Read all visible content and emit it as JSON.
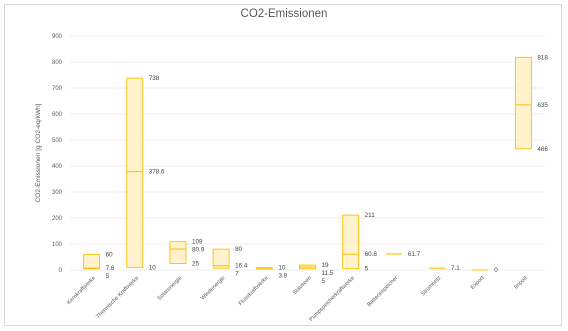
{
  "chart_data": {
    "type": "bar",
    "subtype": "floating-range-with-median",
    "title": "CO2-Emissionen",
    "ylabel": "CO2-Emissionen [g CO2-eq/kWh]",
    "xlabel": "",
    "ylim": [
      0,
      900
    ],
    "yticks": [
      0,
      100,
      200,
      300,
      400,
      500,
      600,
      700,
      800,
      900
    ],
    "grid": true,
    "legend": "none",
    "colors": {
      "fill": "#FFF2CC",
      "stroke": "#FFC000",
      "grid": "#e6e6e6",
      "text": "#595959"
    },
    "categories": [
      "Kernkraftwerke",
      "Thermische Kraftwerke",
      "Solarenergie",
      "Windenergie",
      "Flusskraftwerke",
      "Stauseen",
      "Pumpspeicherkraftwerke",
      "Batteriespeicher",
      "Stromnetz",
      "Export",
      "Import"
    ],
    "series": [
      {
        "values": [
          {
            "min": 5,
            "median": 7.6,
            "max": 60,
            "labels": [
              "60",
              "7.6",
              "5"
            ]
          },
          {
            "min": 10,
            "median": 378.6,
            "max": 738,
            "labels": [
              "738",
              "378.6",
              "10"
            ]
          },
          {
            "min": 25,
            "median": 80.9,
            "max": 109,
            "labels": [
              "109",
              "80.9",
              "25"
            ]
          },
          {
            "min": 7,
            "median": 16.4,
            "max": 80,
            "labels": [
              "80",
              "16.4",
              "7"
            ]
          },
          {
            "min": 3.8,
            "median": 5,
            "max": 10,
            "labels": [
              "10",
              "3.8"
            ]
          },
          {
            "min": 5,
            "median": 11.5,
            "max": 19,
            "labels": [
              "19",
              "11.5",
              "5"
            ]
          },
          {
            "min": 5,
            "median": 60.8,
            "max": 211,
            "labels": [
              "211",
              "60.8",
              "5"
            ]
          },
          {
            "min": 61.7,
            "median": 61.7,
            "max": 61.7,
            "labels": [
              "61.7"
            ]
          },
          {
            "min": 7.1,
            "median": 7.1,
            "max": 7.1,
            "labels": [
              "7.1"
            ]
          },
          {
            "min": 0,
            "median": 0,
            "max": 0,
            "labels": [
              "0"
            ]
          },
          {
            "min": 466,
            "median": 635,
            "max": 818,
            "labels": [
              "818",
              "635",
              "466"
            ]
          }
        ]
      }
    ]
  }
}
